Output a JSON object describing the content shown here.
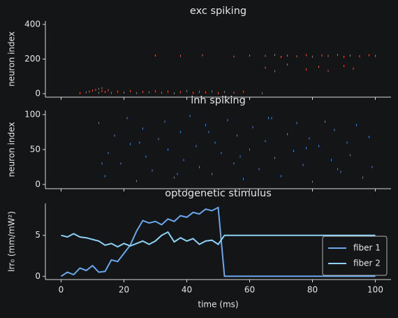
{
  "chart_data": [
    {
      "type": "raster",
      "title": "exc spiking",
      "ylabel": "neuron index",
      "color": "#e8553f",
      "x": [
        6,
        8,
        9,
        10,
        11,
        12,
        12,
        13,
        13,
        14,
        15,
        16,
        18,
        20,
        22,
        24,
        26,
        28,
        30,
        32,
        34,
        36,
        38,
        40,
        42,
        44,
        46,
        48,
        50,
        52,
        55,
        58,
        64,
        30,
        38,
        45,
        55,
        60,
        65,
        68,
        70,
        72,
        75,
        78,
        80,
        83,
        85,
        88,
        90,
        92,
        95,
        98,
        100,
        65,
        68,
        72,
        78,
        82,
        85,
        90,
        93
      ],
      "y": [
        3,
        8,
        12,
        18,
        22,
        28,
        5,
        15,
        32,
        10,
        20,
        4,
        12,
        6,
        15,
        3,
        10,
        8,
        14,
        5,
        12,
        2,
        9,
        16,
        4,
        11,
        7,
        13,
        3,
        10,
        6,
        12,
        2,
        220,
        218,
        222,
        214,
        220,
        218,
        224,
        212,
        220,
        216,
        222,
        214,
        220,
        218,
        224,
        212,
        220,
        216,
        222,
        218,
        150,
        130,
        168,
        140,
        155,
        132,
        160,
        145
      ],
      "xlim": [
        -5,
        105
      ],
      "ylim": [
        -20,
        420
      ],
      "yticks": [
        0,
        200,
        400
      ]
    },
    {
      "type": "raster",
      "title": "inh spiking",
      "ylabel": "neuron index",
      "color": "#3f8ff0",
      "x": [
        12,
        14,
        15,
        17,
        19,
        21,
        22,
        24,
        26,
        27,
        29,
        31,
        33,
        34,
        36,
        38,
        39,
        41,
        43,
        44,
        46,
        48,
        49,
        51,
        53,
        55,
        56,
        58,
        60,
        61,
        63,
        65,
        67,
        68,
        70,
        72,
        74,
        75,
        77,
        79,
        80,
        82,
        84,
        86,
        87,
        89,
        91,
        92,
        94,
        96,
        98,
        99,
        13,
        25,
        37,
        47,
        57,
        66,
        78,
        88
      ],
      "y": [
        88,
        12,
        45,
        70,
        30,
        95,
        58,
        5,
        80,
        40,
        20,
        65,
        90,
        50,
        10,
        75,
        35,
        98,
        55,
        25,
        85,
        15,
        60,
        45,
        92,
        30,
        70,
        8,
        50,
        82,
        22,
        62,
        95,
        38,
        12,
        72,
        48,
        88,
        28,
        66,
        4,
        55,
        90,
        35,
        78,
        18,
        60,
        42,
        85,
        10,
        68,
        25,
        30,
        60,
        15,
        75,
        40,
        95,
        52,
        22
      ],
      "xlim": [
        -5,
        105
      ],
      "ylim": [
        -6,
        106
      ],
      "yticks": [
        0,
        50,
        100
      ]
    },
    {
      "type": "line",
      "title": "optogenetic stimulus",
      "ylabel": "Irr₀ (mm/mW²)",
      "xlabel": "time (ms)",
      "x": [
        0,
        2,
        4,
        6,
        8,
        10,
        12,
        14,
        16,
        18,
        20,
        22,
        24,
        26,
        28,
        30,
        32,
        34,
        36,
        38,
        40,
        42,
        44,
        46,
        48,
        50,
        52,
        54,
        56,
        58,
        60,
        62,
        64,
        66,
        68,
        70,
        72,
        74,
        76,
        78,
        80,
        82,
        84,
        86,
        88,
        90,
        92,
        94,
        96,
        98,
        100
      ],
      "series": [
        {
          "name": "fiber 1",
          "color": "#6aa8ee",
          "values": [
            0,
            0.5,
            0.2,
            1,
            0.7,
            1.3,
            0.5,
            0.6,
            2,
            1.8,
            2.8,
            3.8,
            5.5,
            6.8,
            6.5,
            6.7,
            6.3,
            7,
            6.7,
            7.4,
            7.2,
            7.8,
            7.6,
            8.2,
            8.0,
            8.4,
            0,
            0,
            0,
            0,
            0,
            0,
            0,
            0,
            0,
            0,
            0,
            0,
            0,
            0,
            0,
            0,
            0,
            0,
            0,
            0,
            0,
            0,
            0,
            0,
            0
          ]
        },
        {
          "name": "fiber 2",
          "color": "#8fd2f8",
          "values": [
            5,
            4.8,
            5.2,
            4.8,
            4.7,
            4.5,
            4.3,
            3.8,
            4,
            3.6,
            4,
            3.7,
            4,
            4.3,
            3.9,
            4.3,
            5,
            5.4,
            4.2,
            4.7,
            4.3,
            4.6,
            3.9,
            4.3,
            4.4,
            3.9,
            5,
            5,
            5,
            5,
            5,
            5,
            5,
            5,
            5,
            5,
            5,
            5,
            5,
            5,
            5,
            5,
            5,
            5,
            5,
            5,
            5,
            5,
            5,
            5,
            5
          ]
        }
      ],
      "xlim": [
        -5,
        105
      ],
      "ylim": [
        -0.4,
        8.9
      ],
      "xticks": [
        0,
        20,
        40,
        60,
        80,
        100
      ],
      "yticks": [
        0,
        5
      ],
      "legend": "lower right"
    }
  ]
}
